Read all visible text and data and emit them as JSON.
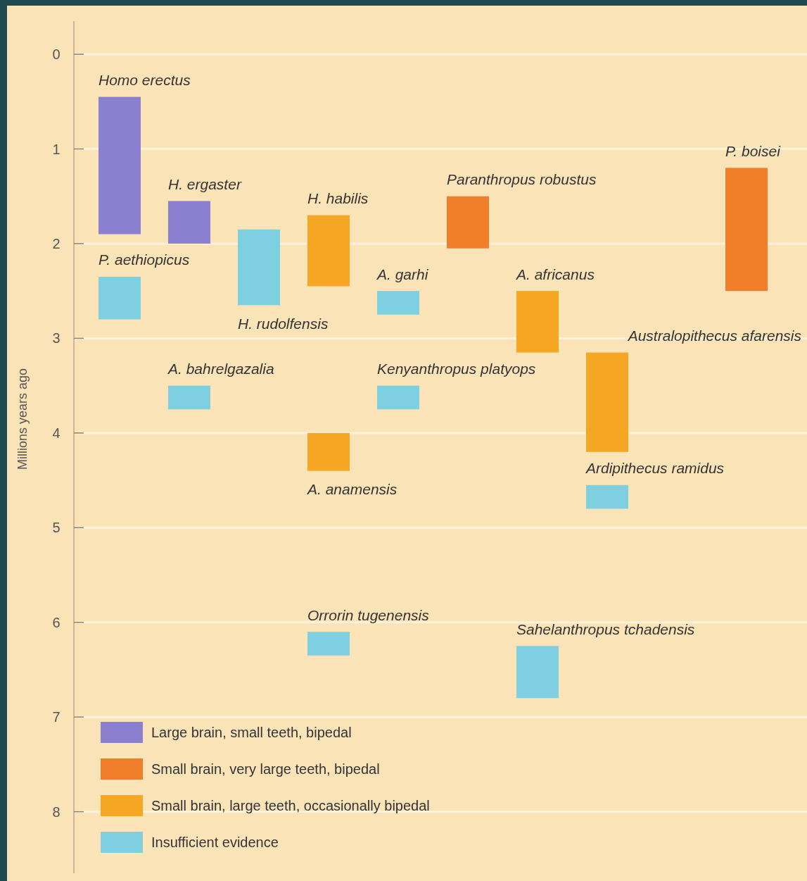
{
  "chart_data": {
    "type": "bar",
    "ylabel": "Millions years ago",
    "categories": [
      null,
      null,
      null,
      null,
      null,
      null,
      null,
      null,
      null,
      null
    ],
    "ylim": [
      8.65,
      -0.35
    ],
    "yticks": [
      0,
      1,
      2,
      3,
      4,
      5,
      6,
      7,
      8
    ],
    "grid": "y",
    "legend": "bottom left",
    "tick_labels": "y",
    "series": [
      {
        "name": "Large brain, small teeth, bipedal",
        "color": "#8b7fd0",
        "base": [
          0.45,
          1.55,
          null,
          null,
          null,
          null,
          null,
          null,
          null,
          null
        ],
        "values": [
          1.45,
          0.45,
          null,
          null,
          null,
          null,
          null,
          null,
          null,
          null
        ]
      },
      {
        "name": "Small brain, very large teeth, bipedal",
        "color": "#f07d2a",
        "base": [
          null,
          null,
          null,
          null,
          null,
          1.5,
          null,
          null,
          null,
          1.2
        ],
        "values": [
          null,
          null,
          null,
          null,
          null,
          0.55,
          null,
          null,
          null,
          1.3
        ]
      },
      {
        "name": "Small brain, large teeth, occasionally bipedal",
        "color": "#f5a623",
        "base": [
          null,
          null,
          null,
          1.7,
          null,
          null,
          2.5,
          3.15,
          null,
          null
        ],
        "values": [
          null,
          null,
          null,
          0.75,
          null,
          null,
          0.65,
          1.05,
          null,
          null
        ]
      },
      {
        "name": "Insufficient evidence",
        "color": "#7ecfe0",
        "base": [
          2.35,
          3.5,
          1.85,
          6.1,
          2.5,
          null,
          6.25,
          4.55,
          null,
          null
        ],
        "values": [
          0.45,
          0.25,
          0.8,
          0.25,
          0.25,
          null,
          0.55,
          0.25,
          null,
          null
        ]
      },
      {
        "color": "#f5a623",
        "base": [
          null,
          null,
          null,
          4.0,
          null,
          null,
          null,
          null,
          null,
          null
        ],
        "values": [
          null,
          null,
          null,
          0.4,
          null,
          null,
          null,
          null,
          null,
          null
        ]
      },
      {
        "color": "#7ecfe0",
        "base": [
          null,
          null,
          null,
          null,
          3.5,
          null,
          null,
          null,
          null,
          null
        ],
        "values": [
          null,
          null,
          null,
          null,
          0.25,
          null,
          null,
          null,
          null,
          null
        ]
      }
    ],
    "annotations": [
      "Homo erectus",
      {
        "text": "H. ergaster",
        "y": 1.55
      },
      "Paranthropus robustus",
      {
        "text": "P. boisei",
        "y": 1.2
      },
      {
        "text": "H. habilis",
        "y": 1.7
      },
      {
        "text": "A. africanus",
        "y": 2.5
      },
      "Australopithecus afarensis",
      {
        "text": "P. aethiopicus",
        "y": 2.35
      },
      "A. bahrelgazalia",
      {
        "text": "H. rudolfensis",
        "y": 2.65
      },
      "Orrorin tugenensis",
      {
        "text": "A. garhi",
        "y": 2.5
      },
      "Sahelanthropus tchadensis",
      "Ardipithecus ramidus",
      {
        "text": "A. anamensis",
        "y": 4.4
      },
      "Kenyanthropus platyops"
    ]
  }
}
